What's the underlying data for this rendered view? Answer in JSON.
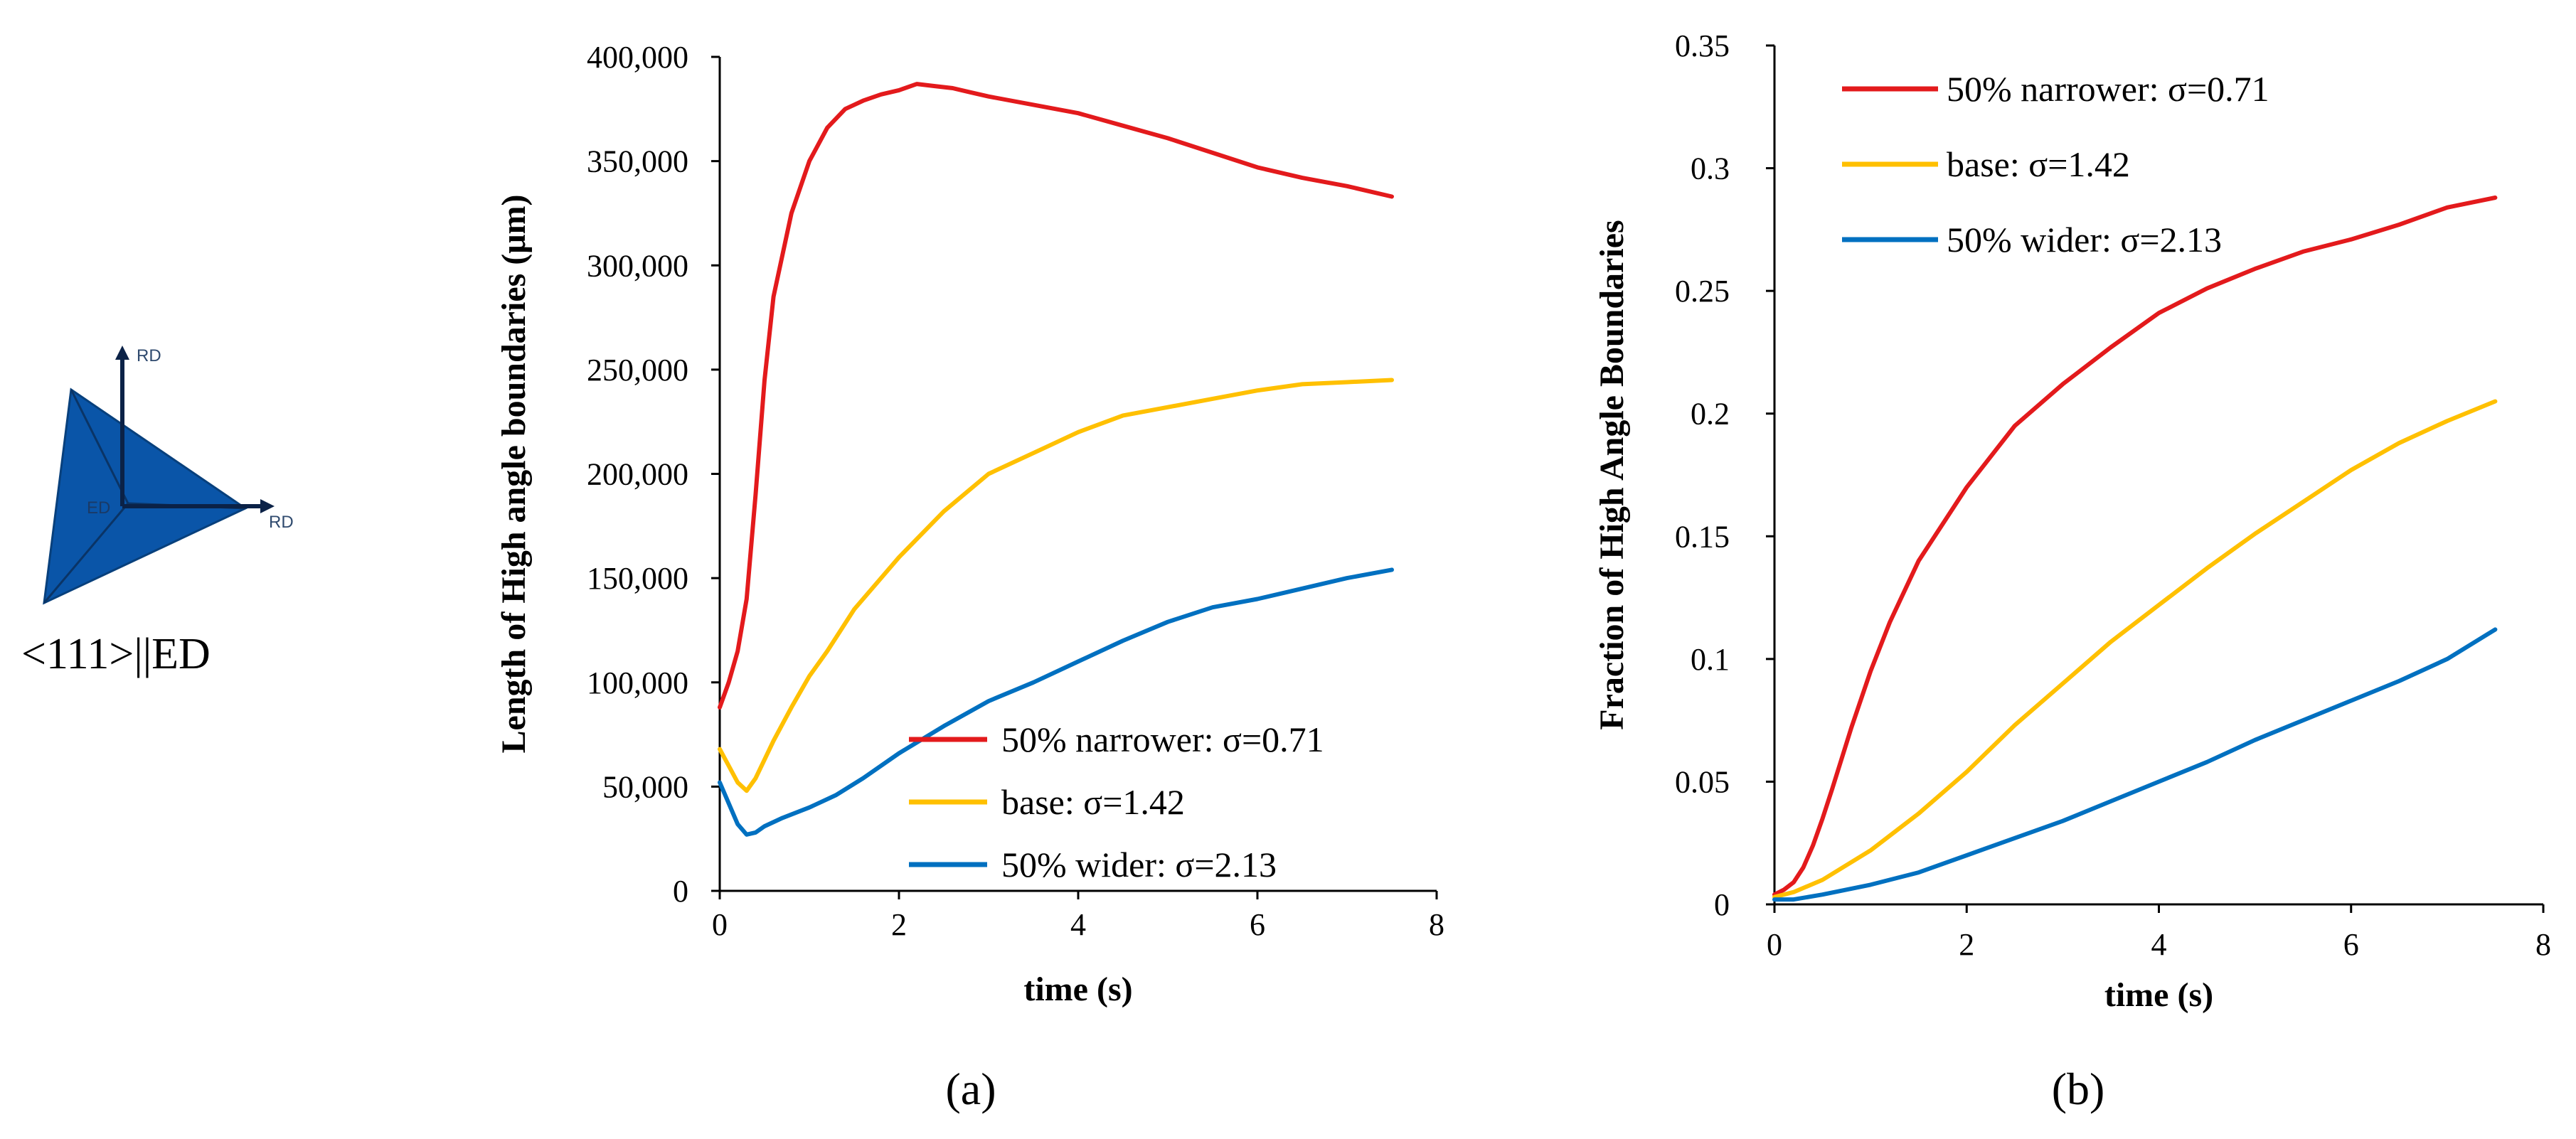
{
  "inset": {
    "axis_label_rd_top": "RD",
    "axis_label_rd_right": "RD",
    "axis_label_ed": "ED",
    "orientation_label": "<111>||ED"
  },
  "chart_data": [
    {
      "type": "line",
      "id": "a",
      "caption": "(a)",
      "title": "",
      "xlabel": "time (s)",
      "ylabel": "Length of High angle boundaries (μm)",
      "xlim": [
        0,
        8
      ],
      "ylim": [
        0,
        400000
      ],
      "xticks": [
        0,
        2,
        4,
        6,
        8
      ],
      "xtick_labels": [
        "0",
        "2",
        "4",
        "6",
        "8"
      ],
      "yticks": [
        0,
        50000,
        100000,
        150000,
        200000,
        250000,
        300000,
        350000,
        400000
      ],
      "ytick_labels": [
        "0",
        "50,000",
        "100,000",
        "150,000",
        "200,000",
        "250,000",
        "300,000",
        "350,000",
        "400,000"
      ],
      "legend_position": "lower-right",
      "series": [
        {
          "name": "50% narrower: σ=0.71",
          "color": "#e31a1c",
          "x": [
            0,
            0.1,
            0.2,
            0.3,
            0.4,
            0.5,
            0.6,
            0.8,
            1.0,
            1.2,
            1.4,
            1.6,
            1.8,
            2.0,
            2.2,
            2.4,
            2.6,
            2.8,
            3.0,
            3.5,
            4.0,
            4.5,
            5.0,
            5.5,
            6.0,
            6.5,
            7.0,
            7.5
          ],
          "y": [
            88000,
            100000,
            115000,
            140000,
            190000,
            245000,
            285000,
            325000,
            350000,
            366000,
            375000,
            379000,
            382000,
            384000,
            387000,
            386000,
            385000,
            383000,
            381000,
            377000,
            373000,
            367000,
            361000,
            354000,
            347000,
            342000,
            338000,
            333000
          ]
        },
        {
          "name": "base: σ=1.42",
          "color": "#ffc000",
          "x": [
            0,
            0.1,
            0.2,
            0.3,
            0.4,
            0.5,
            0.6,
            0.8,
            1.0,
            1.2,
            1.5,
            2.0,
            2.5,
            3.0,
            3.5,
            4.0,
            4.5,
            5.0,
            5.5,
            6.0,
            6.5,
            7.0,
            7.5
          ],
          "y": [
            68000,
            60000,
            52000,
            48000,
            54000,
            63000,
            72000,
            88000,
            103000,
            115000,
            135000,
            160000,
            182000,
            200000,
            210000,
            220000,
            228000,
            232000,
            236000,
            240000,
            243000,
            244000,
            245000
          ]
        },
        {
          "name": "50% wider: σ=2.13",
          "color": "#0070c0",
          "x": [
            0,
            0.1,
            0.2,
            0.3,
            0.4,
            0.5,
            0.7,
            1.0,
            1.3,
            1.6,
            2.0,
            2.5,
            3.0,
            3.5,
            4.0,
            4.5,
            5.0,
            5.5,
            6.0,
            6.5,
            7.0,
            7.5
          ],
          "y": [
            52000,
            42000,
            32000,
            27000,
            28000,
            31000,
            35000,
            40000,
            46000,
            54000,
            66000,
            79000,
            91000,
            100000,
            110000,
            120000,
            129000,
            136000,
            140000,
            145000,
            150000,
            154000
          ]
        }
      ]
    },
    {
      "type": "line",
      "id": "b",
      "caption": "(b)",
      "title": "",
      "xlabel": "time (s)",
      "ylabel": "Fraction of High Angle Boundaries",
      "xlim": [
        0,
        8
      ],
      "ylim": [
        0,
        0.35
      ],
      "xticks": [
        0,
        2,
        4,
        6,
        8
      ],
      "xtick_labels": [
        "0",
        "2",
        "4",
        "6",
        "8"
      ],
      "yticks": [
        0,
        0.05,
        0.1,
        0.15,
        0.2,
        0.25,
        0.3,
        0.35
      ],
      "ytick_labels": [
        "0",
        "0.05",
        "0.1",
        "0.15",
        "0.2",
        "0.25",
        "0.3",
        "0.35"
      ],
      "legend_position": "top-left",
      "series": [
        {
          "name": "50% narrower: σ=0.71",
          "color": "#e31a1c",
          "x": [
            0,
            0.1,
            0.2,
            0.3,
            0.4,
            0.5,
            0.6,
            0.8,
            1.0,
            1.2,
            1.5,
            2.0,
            2.5,
            3.0,
            3.5,
            4.0,
            4.5,
            5.0,
            5.5,
            6.0,
            6.5,
            7.0,
            7.5
          ],
          "y": [
            0.004,
            0.006,
            0.009,
            0.015,
            0.024,
            0.035,
            0.047,
            0.072,
            0.095,
            0.115,
            0.14,
            0.17,
            0.195,
            0.212,
            0.227,
            0.241,
            0.251,
            0.259,
            0.266,
            0.271,
            0.277,
            0.284,
            0.288
          ]
        },
        {
          "name": "base: σ=1.42",
          "color": "#ffc000",
          "x": [
            0,
            0.2,
            0.5,
            1.0,
            1.5,
            2.0,
            2.5,
            3.0,
            3.5,
            4.0,
            4.5,
            5.0,
            5.5,
            6.0,
            6.5,
            7.0,
            7.5
          ],
          "y": [
            0.003,
            0.005,
            0.01,
            0.022,
            0.037,
            0.054,
            0.073,
            0.09,
            0.107,
            0.122,
            0.137,
            0.151,
            0.164,
            0.177,
            0.188,
            0.197,
            0.205
          ]
        },
        {
          "name": "50% wider: σ=2.13",
          "color": "#0070c0",
          "x": [
            0,
            0.2,
            0.5,
            1.0,
            1.5,
            2.0,
            2.5,
            3.0,
            3.5,
            4.0,
            4.5,
            5.0,
            5.5,
            6.0,
            6.5,
            7.0,
            7.5
          ],
          "y": [
            0.002,
            0.002,
            0.004,
            0.008,
            0.013,
            0.02,
            0.027,
            0.034,
            0.042,
            0.05,
            0.058,
            0.067,
            0.075,
            0.083,
            0.091,
            0.1,
            0.112
          ]
        }
      ]
    }
  ]
}
